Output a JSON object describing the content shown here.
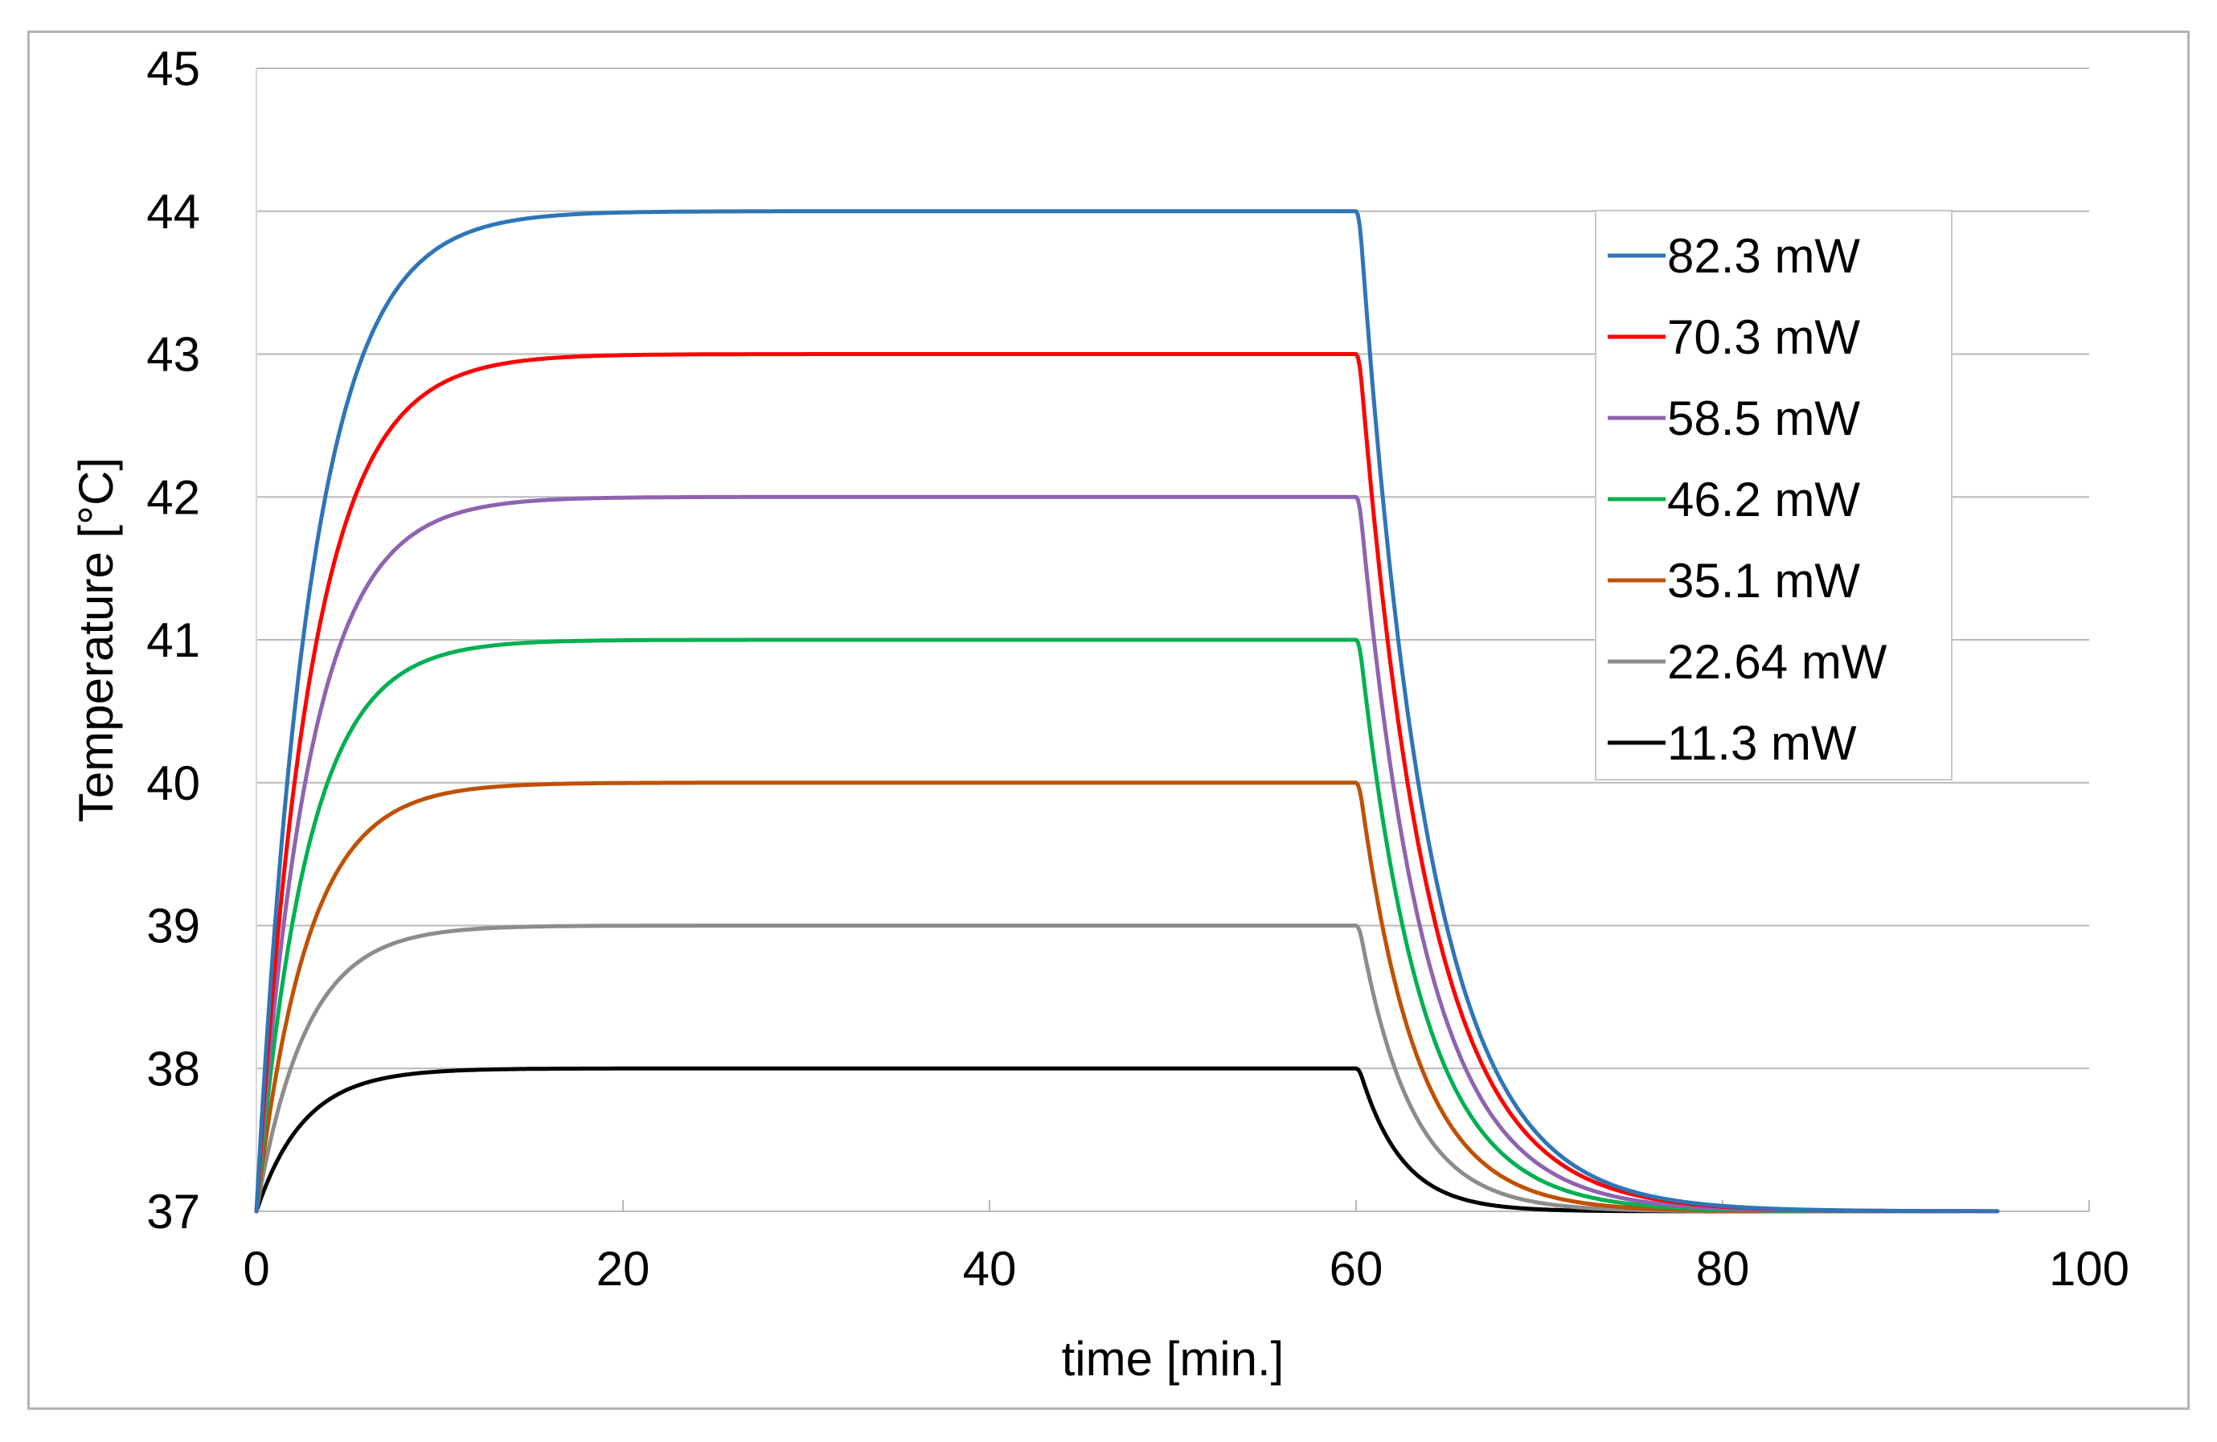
{
  "chart_data": {
    "type": "line",
    "title": "",
    "xlabel": "time [min.]",
    "ylabel": "Temperature [°C]",
    "xlim": [
      0,
      100
    ],
    "ylim": [
      37,
      45
    ],
    "x_ticks": [
      0,
      20,
      40,
      60,
      80,
      100
    ],
    "y_ticks": [
      37,
      38,
      39,
      40,
      41,
      42,
      43,
      44,
      45
    ],
    "grid": "horizontal",
    "legend_position": "top-right",
    "baseline": 37,
    "heating_end": 60,
    "series": [
      {
        "name": "82.3 mW",
        "color": "#2e75b6",
        "plateau": 44.0,
        "tau_heat": 3.0,
        "tau_cool": 3.8,
        "end": 95
      },
      {
        "name": "70.3 mW",
        "color": "#ff0000",
        "plateau": 43.0,
        "tau_heat": 3.0,
        "tau_cool": 3.8,
        "end": 95
      },
      {
        "name": "58.5 mW",
        "color": "#8e63b0",
        "plateau": 42.0,
        "tau_heat": 2.9,
        "tau_cool": 3.6,
        "end": 93
      },
      {
        "name": "46.2 mW",
        "color": "#00b050",
        "plateau": 41.0,
        "tau_heat": 2.8,
        "tau_cool": 3.4,
        "end": 93
      },
      {
        "name": "35.1 mW",
        "color": "#c05000",
        "plateau": 40.0,
        "tau_heat": 2.8,
        "tau_cool": 3.1,
        "end": 92
      },
      {
        "name": "22.64 mW",
        "color": "#8c8c8c",
        "plateau": 39.0,
        "tau_heat": 2.7,
        "tau_cool": 2.8,
        "end": 91
      },
      {
        "name": "11.3 mW",
        "color": "#000000",
        "plateau": 38.0,
        "tau_heat": 2.6,
        "tau_cool": 2.3,
        "end": 91
      }
    ]
  }
}
